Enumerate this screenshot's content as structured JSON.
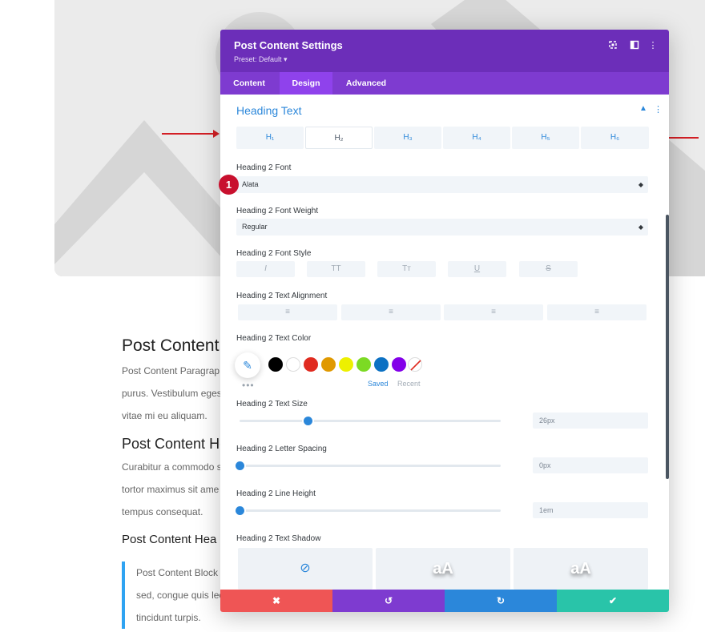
{
  "modal": {
    "title": "Post Content Settings",
    "preset": "Preset: Default ▾",
    "tabs": [
      "Content",
      "Design",
      "Advanced"
    ],
    "active_tab": "Design"
  },
  "section": {
    "title": "Heading Text",
    "heading_tabs": [
      "H₁",
      "H₂",
      "H₃",
      "H₄",
      "H₅",
      "H₆"
    ],
    "active_heading": "H₂"
  },
  "fields": {
    "font_label": "Heading 2 Font",
    "font_value": "Alata",
    "weight_label": "Heading 2 Font Weight",
    "weight_value": "Regular",
    "style_label": "Heading 2 Font Style",
    "style_buttons": [
      "I",
      "TT",
      "Tт",
      "U",
      "S"
    ],
    "align_label": "Heading 2 Text Alignment",
    "align_buttons": [
      "≡",
      "≡",
      "≡",
      "≡"
    ],
    "color_label": "Heading 2 Text Color",
    "swatch_colors": [
      "#000000",
      "#ffffff",
      "#e02b20",
      "#e09900",
      "#edf000",
      "#7cda24",
      "#0c71c3",
      "#8300e9"
    ],
    "saved_label": "Saved",
    "recent_label": "Recent",
    "size_label": "Heading 2 Text Size",
    "size_value": "26px",
    "size_level": 0.26,
    "spacing_label": "Heading 2 Letter Spacing",
    "spacing_value": "0px",
    "spacing_level": 0.0,
    "line_height_label": "Heading 2 Line Height",
    "line_height_value": "1em",
    "line_height_level": 0.0,
    "shadow_label": "Heading 2 Text Shadow",
    "shadow_preview_text": "aA"
  },
  "background": {
    "heading1": "Post Content",
    "p1_line1": "Post Content Paragrap",
    "p1_line2": "purus. Vestibulum eges",
    "p1_line3": "vitae mi eu aliquam.",
    "heading2": "Post Content He",
    "p2_line1": "Curabitur a commodo s",
    "p2_line2": "tortor maximus sit ame",
    "p2_line3": "tempus consequat.",
    "heading3": "Post Content Hea",
    "bq_line1": "Post Content Block",
    "bq_line2": "sed, congue quis lec",
    "bq_line3": "tincidunt turpis."
  },
  "annotation": {
    "badge_number": "1"
  },
  "colors": {
    "header": "#6c2eb9",
    "tabs_bar": "#7e3bd0",
    "accent": "#2b87da",
    "cancel": "#ef5555",
    "undo": "#7e3bd0",
    "redo": "#2b87da",
    "save": "#29c4a9"
  },
  "footer": {
    "cancel_icon": "✖",
    "undo_icon": "↺",
    "redo_icon": "↻",
    "save_icon": "✔"
  }
}
